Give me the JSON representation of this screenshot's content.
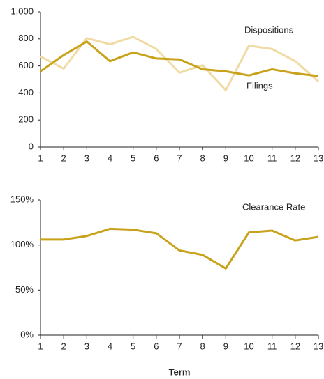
{
  "chart_data": [
    {
      "type": "line",
      "x": [
        1,
        2,
        3,
        4,
        5,
        6,
        7,
        8,
        9,
        10,
        11,
        12,
        13
      ],
      "xlim": [
        1,
        13
      ],
      "xticks": [
        1,
        2,
        3,
        4,
        5,
        6,
        7,
        8,
        9,
        10,
        11,
        12,
        13
      ],
      "ylim": [
        0,
        1000
      ],
      "yticks": [
        0,
        200,
        400,
        600,
        800,
        {
          "value": 1000,
          "label": "1,000"
        }
      ],
      "series": [
        {
          "name": "Dispositions",
          "color": "#f0dba4",
          "values": [
            670,
            580,
            805,
            760,
            815,
            725,
            550,
            605,
            420,
            750,
            725,
            635,
            485
          ]
        },
        {
          "name": "Filings",
          "color": "#c9a21b",
          "values": [
            560,
            680,
            780,
            635,
            700,
            655,
            648,
            575,
            560,
            530,
            575,
            545,
            525
          ]
        }
      ]
    },
    {
      "type": "line",
      "x": [
        1,
        2,
        3,
        4,
        5,
        6,
        7,
        8,
        9,
        10,
        11,
        12,
        13
      ],
      "xlim": [
        1,
        13
      ],
      "xticks": [
        1,
        2,
        3,
        4,
        5,
        6,
        7,
        8,
        9,
        10,
        11,
        12,
        13
      ],
      "xlabel": "Term",
      "ylim": [
        0,
        150
      ],
      "yticks": [
        {
          "value": 0,
          "label": "0%"
        },
        {
          "value": 50,
          "label": "50%"
        },
        {
          "value": 100,
          "label": "100%"
        },
        {
          "value": 150,
          "label": "150%"
        }
      ],
      "series": [
        {
          "name": "Clearance Rate",
          "color": "#c9a21b",
          "values": [
            106,
            106,
            110,
            118,
            117,
            113,
            94,
            89,
            74,
            114,
            116,
            105,
            109
          ]
        }
      ]
    }
  ]
}
